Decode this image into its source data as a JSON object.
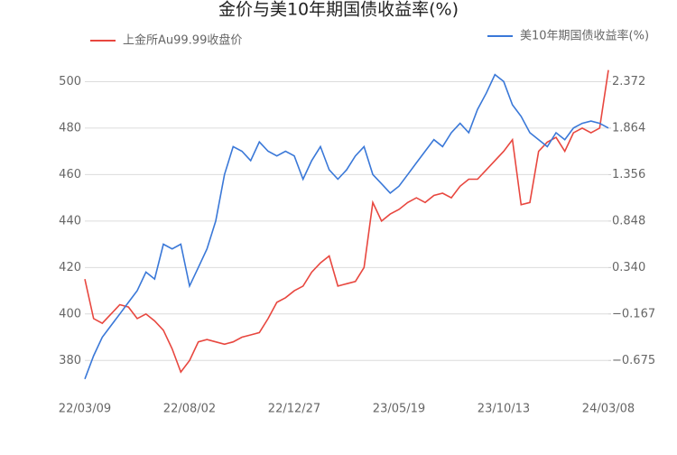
{
  "chart_data": {
    "type": "line",
    "title": "金价与美10年期国债收益率(%)",
    "categories": [
      "22/03/09",
      null,
      null,
      null,
      null,
      null,
      null,
      null,
      null,
      null,
      null,
      null,
      "22/08/02",
      null,
      null,
      null,
      null,
      null,
      null,
      null,
      null,
      null,
      null,
      null,
      "22/12/27",
      null,
      null,
      null,
      null,
      null,
      null,
      null,
      null,
      null,
      null,
      null,
      "23/05/19",
      null,
      null,
      null,
      null,
      null,
      null,
      null,
      null,
      null,
      null,
      null,
      "23/10/13",
      null,
      null,
      null,
      null,
      null,
      null,
      null,
      null,
      null,
      null,
      null,
      "24/03/08"
    ],
    "series": [
      {
        "name": "上金所Au99.99收盘价",
        "color": "#e8473f",
        "axis": "y",
        "values": [
          415,
          398,
          396,
          400,
          404,
          403,
          398,
          400,
          397,
          393,
          385,
          375,
          380,
          388,
          389,
          388,
          387,
          388,
          390,
          391,
          392,
          398,
          405,
          407,
          410,
          412,
          418,
          422,
          425,
          412,
          413,
          414,
          420,
          448,
          440,
          443,
          445,
          448,
          450,
          448,
          451,
          452,
          450,
          455,
          458,
          458,
          462,
          466,
          470,
          475,
          447,
          448,
          470,
          474,
          476,
          470,
          478,
          480,
          478,
          480,
          505
        ]
      },
      {
        "name": "美10年期国债收益率(%)",
        "color": "#3a78d8",
        "axis": "y2",
        "values": [
          -0.878,
          -0.624,
          -0.421,
          -0.294,
          -0.167,
          -0.04,
          0.087,
          0.29,
          0.214,
          0.595,
          0.544,
          0.595,
          0.138,
          0.341,
          0.544,
          0.849,
          1.357,
          1.662,
          1.611,
          1.509,
          1.713,
          1.611,
          1.56,
          1.611,
          1.56,
          1.306,
          1.509,
          1.662,
          1.408,
          1.306,
          1.408,
          1.56,
          1.662,
          1.357,
          1.255,
          1.154,
          1.23,
          1.357,
          1.484,
          1.611,
          1.738,
          1.662,
          1.814,
          1.916,
          1.814,
          2.068,
          2.246,
          2.449,
          2.373,
          2.119,
          1.992,
          1.814,
          1.738,
          1.662,
          1.814,
          1.738,
          1.865,
          1.916,
          1.941,
          1.916,
          1.865
        ]
      }
    ],
    "ylim": [
      370,
      506
    ],
    "yticks": [
      380,
      400,
      420,
      440,
      460,
      480,
      500
    ],
    "y2lim": [
      -0.929,
      2.524
    ],
    "y2ticks": [
      {
        "value": -0.675,
        "label": "−0.675"
      },
      {
        "value": -0.167,
        "label": "−0.167"
      },
      {
        "value": 0.34,
        "label": "0.340"
      },
      0.848,
      1.356,
      1.864,
      2.372
    ],
    "grid": true
  }
}
